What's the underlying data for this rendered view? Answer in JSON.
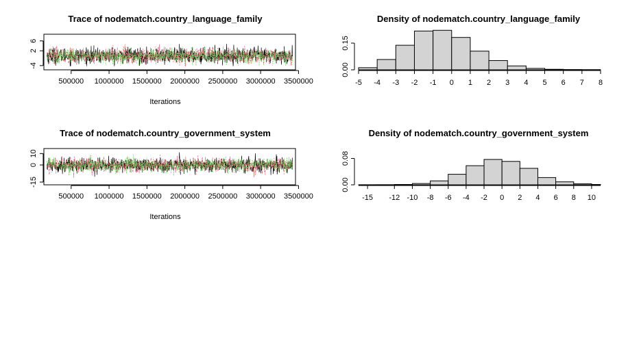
{
  "colors": {
    "chain1": "#000000",
    "chain2": "#DF536B",
    "chain3": "#61D04F",
    "bar_fill": "#D3D3D3"
  },
  "chart_data": [
    {
      "type": "line",
      "title": "Trace of nodematch.country_language_family",
      "xlabel": "Iterations",
      "xlim": [
        140000,
        3460000
      ],
      "ylim": [
        -4.6,
        7.6
      ],
      "xticks": [
        "500000",
        "1000000",
        "1500000",
        "2000000",
        "2500000",
        "3000000",
        "3500000"
      ],
      "yticks": [
        "-4",
        "2",
        "6"
      ],
      "series": [
        {
          "color": "#000000",
          "center": 0.0,
          "sd": 1.6,
          "min": -4.2,
          "max": 6.0
        },
        {
          "color": "#DF536B",
          "center": 0.0,
          "sd": 1.6,
          "min": -4.3,
          "max": 7.2
        },
        {
          "color": "#61D04F",
          "center": 0.0,
          "sd": 1.6,
          "min": -4.0,
          "max": 7.4
        }
      ],
      "x_range": [
        180000,
        3420000
      ]
    },
    {
      "type": "bar",
      "title": "Density of nodematch.country_language_family",
      "xlim": [
        -5,
        8
      ],
      "ylim": [
        0,
        0.2
      ],
      "xticks": [
        "-5",
        "-4",
        "-3",
        "-2",
        "-1",
        "0",
        "1",
        "2",
        "3",
        "4",
        "5",
        "6",
        "7",
        "8"
      ],
      "yticks": [
        "0.00",
        "0.15"
      ],
      "bins": [
        [
          -5,
          -4
        ],
        [
          -4,
          -3
        ],
        [
          -3,
          -2
        ],
        [
          -2,
          -1
        ],
        [
          -1,
          0
        ],
        [
          0,
          1
        ],
        [
          1,
          2
        ],
        [
          2,
          3
        ],
        [
          3,
          4
        ],
        [
          4,
          5
        ],
        [
          5,
          6
        ],
        [
          6,
          7
        ],
        [
          7,
          8
        ]
      ],
      "values": [
        0.012,
        0.058,
        0.138,
        0.218,
        0.222,
        0.182,
        0.105,
        0.052,
        0.022,
        0.008,
        0.003,
        0.0015,
        0.001
      ]
    },
    {
      "type": "line",
      "title": "Trace of nodematch.country_government_system",
      "xlabel": "Iterations",
      "xlim": [
        140000,
        3460000
      ],
      "ylim": [
        -15,
        12
      ],
      "xticks": [
        "500000",
        "1000000",
        "1500000",
        "2000000",
        "2500000",
        "3000000",
        "3500000"
      ],
      "yticks": [
        "-15",
        "0",
        "10"
      ],
      "series": [
        {
          "color": "#000000",
          "center": 0.0,
          "sd": 3.2,
          "min": -12.0,
          "max": 11.0
        },
        {
          "color": "#DF536B",
          "center": 0.0,
          "sd": 3.2,
          "min": -11.0,
          "max": 10.0
        },
        {
          "color": "#61D04F",
          "center": 0.0,
          "sd": 3.2,
          "min": -10.0,
          "max": 10.0
        }
      ],
      "x_range": [
        180000,
        3420000
      ]
    },
    {
      "type": "bar",
      "title": "Density of nodematch.country_government_system",
      "xlim": [
        -16,
        11
      ],
      "ylim": [
        0,
        0.11
      ],
      "xticks": [
        "-15",
        "-12",
        "-10",
        "-8",
        "-6",
        "-4",
        "-2",
        "0",
        "2",
        "4",
        "6",
        "8",
        "10"
      ],
      "yticks": [
        "0.00",
        "0.08"
      ],
      "bins": [
        [
          -16,
          -14
        ],
        [
          -14,
          -12
        ],
        [
          -12,
          -10
        ],
        [
          -10,
          -8
        ],
        [
          -8,
          -6
        ],
        [
          -6,
          -4
        ],
        [
          -4,
          -2
        ],
        [
          -2,
          0
        ],
        [
          0,
          2
        ],
        [
          2,
          4
        ],
        [
          4,
          6
        ],
        [
          6,
          8
        ],
        [
          8,
          10
        ],
        [
          10,
          11
        ]
      ],
      "values": [
        0.0003,
        0.0004,
        0.001,
        0.004,
        0.012,
        0.032,
        0.058,
        0.077,
        0.071,
        0.05,
        0.022,
        0.009,
        0.003,
        0.001
      ]
    }
  ]
}
